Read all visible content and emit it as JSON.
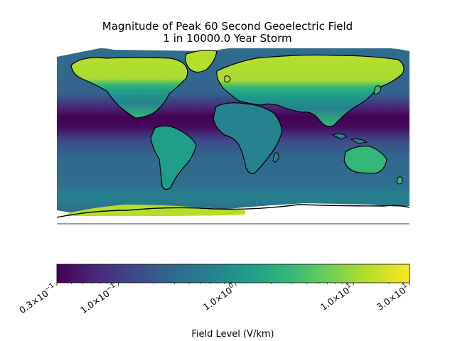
{
  "title_line1": "Magnitude of Peak 60 Second Geoelectric Field",
  "title_line2": "1 in 10000.0 Year Storm",
  "colorbar": {
    "label": "Field Level (V/km)",
    "scale": "log",
    "range": [
      0.03,
      30
    ],
    "colormap": [
      "#440154",
      "#482878",
      "#3e4989",
      "#31688e",
      "#26828e",
      "#1f9e89",
      "#35b779",
      "#6ece58",
      "#b5de2b",
      "#fde725"
    ],
    "ticks": [
      {
        "value": 0.03,
        "mantissa": "0.3",
        "exponent": "−1"
      },
      {
        "value": 0.1,
        "mantissa": "1.0",
        "exponent": "−1"
      },
      {
        "value": 1,
        "mantissa": "1.0",
        "exponent": "0"
      },
      {
        "value": 10,
        "mantissa": "1.0",
        "exponent": "1"
      },
      {
        "value": 30,
        "mantissa": "3.0",
        "exponent": "1"
      }
    ]
  },
  "map": {
    "projection": "equirectangular",
    "ocean_color": "#2f6d8e",
    "equatorial_band_color": "#46155f",
    "land_high_color": "#b5de2b",
    "land_mid_color": "#35b779",
    "coastline_color": "#000000"
  }
}
